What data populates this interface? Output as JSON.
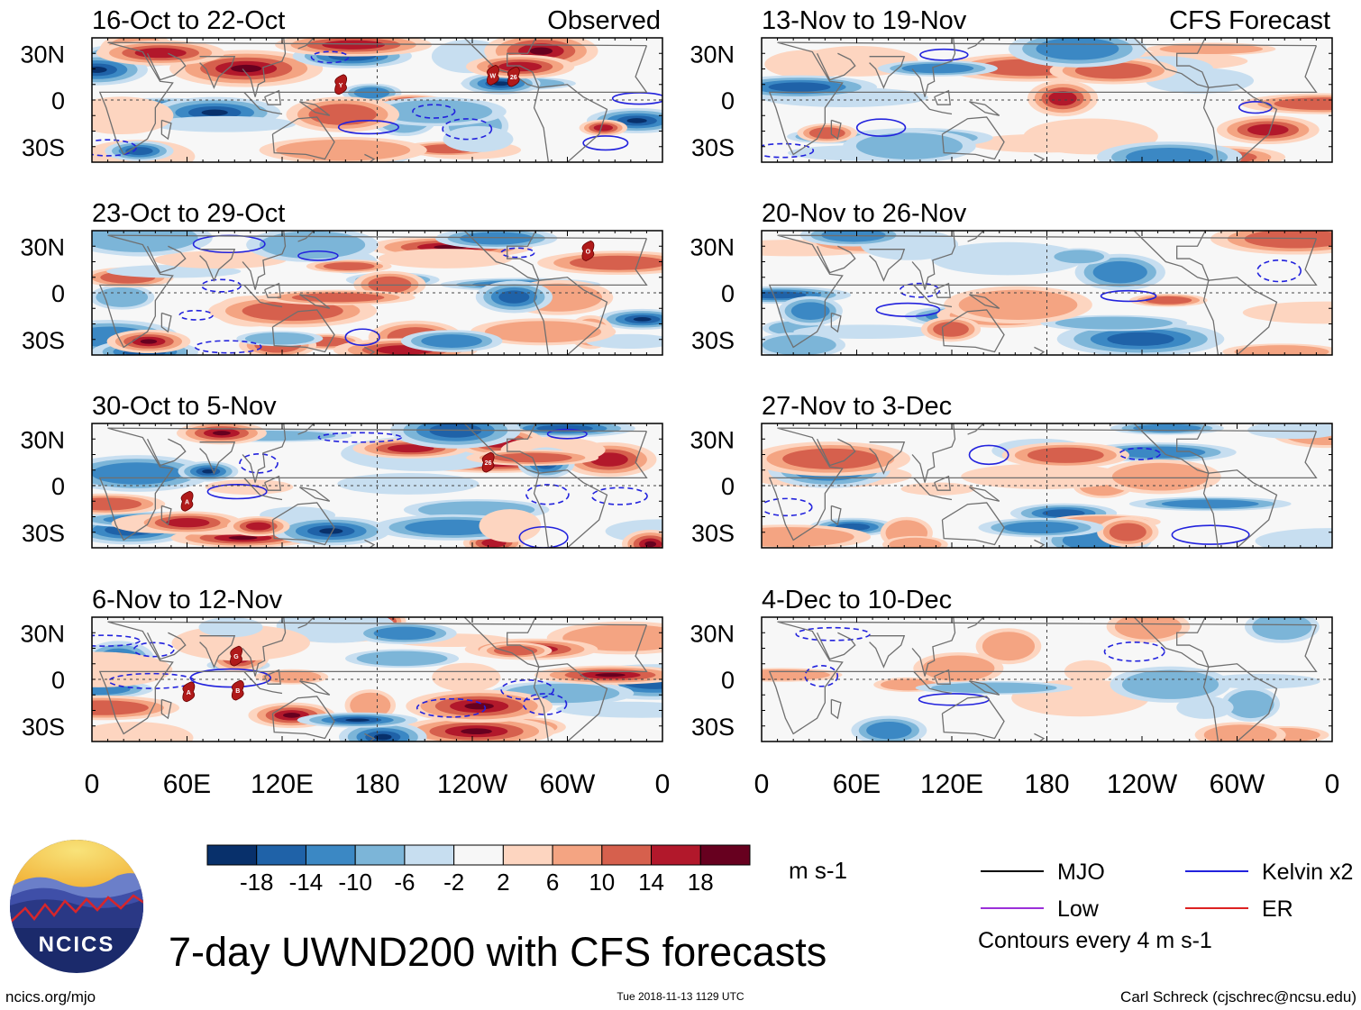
{
  "chart_data": {
    "type": "heatmap",
    "title": "7-day UWND200 with CFS forecasts",
    "variable": "UWND200",
    "units": "m s-1",
    "label_observed": "Observed",
    "label_forecast": "CFS Forecast",
    "x_ticks": [
      "0",
      "60E",
      "120E",
      "180",
      "120W",
      "60W",
      "0"
    ],
    "y_ticks": [
      "30N",
      "0",
      "30S"
    ],
    "lon_range": [
      0,
      360
    ],
    "lat_range": [
      -40,
      40
    ],
    "panels": [
      {
        "title": "16-Oct to 22-Oct",
        "kind": "observed",
        "storms": [
          {
            "lon": 157,
            "lat": 10,
            "id": "Y"
          },
          {
            "lon": 253,
            "lat": 16,
            "id": "W"
          },
          {
            "lon": 266,
            "lat": 15,
            "id": "26"
          }
        ]
      },
      {
        "title": "23-Oct to 29-Oct",
        "kind": "observed",
        "storms": [
          {
            "lon": 313,
            "lat": 27,
            "id": "O"
          }
        ]
      },
      {
        "title": "30-Oct to 5-Nov",
        "kind": "observed",
        "storms": [
          {
            "lon": 60,
            "lat": -10,
            "id": "A"
          },
          {
            "lon": 250,
            "lat": 15,
            "id": "26"
          }
        ]
      },
      {
        "title": "6-Nov to 12-Nov",
        "kind": "observed",
        "storms": [
          {
            "lon": 91,
            "lat": 15,
            "id": "G"
          },
          {
            "lon": 92,
            "lat": -7,
            "id": "B"
          },
          {
            "lon": 61,
            "lat": -8,
            "id": "A"
          }
        ]
      },
      {
        "title": "13-Nov to 19-Nov",
        "kind": "forecast",
        "storms": []
      },
      {
        "title": "20-Nov to 26-Nov",
        "kind": "forecast",
        "storms": []
      },
      {
        "title": "27-Nov to 3-Dec",
        "kind": "forecast",
        "storms": []
      },
      {
        "title": "4-Dec to 10-Dec",
        "kind": "forecast",
        "storms": []
      }
    ],
    "colorbar": {
      "labels": [
        "-18",
        "-14",
        "-10",
        "-6",
        "-2",
        "2",
        "6",
        "10",
        "14",
        "18"
      ],
      "colors": [
        "#08306b",
        "#1f62a8",
        "#3b88c4",
        "#7cb5d8",
        "#c7def0",
        "#f7f7f7",
        "#fdd5c0",
        "#f4a482",
        "#d6604d",
        "#b2182b",
        "#67001f"
      ]
    },
    "legend": [
      {
        "label": "MJO",
        "color": "#000000"
      },
      {
        "label": "Kelvin x2",
        "color": "#2222dd"
      },
      {
        "label": "Low",
        "color": "#9b30d9"
      },
      {
        "label": "ER",
        "color": "#dd2222"
      }
    ],
    "contour_note": "Contours every 4 m s-1"
  },
  "footer": {
    "logo_text": "NCICS",
    "site": "ncics.org/mjo",
    "timestamp": "Tue 2018-11-13 1129 UTC",
    "author": "Carl Schreck (cjschrec@ncsu.edu)"
  }
}
